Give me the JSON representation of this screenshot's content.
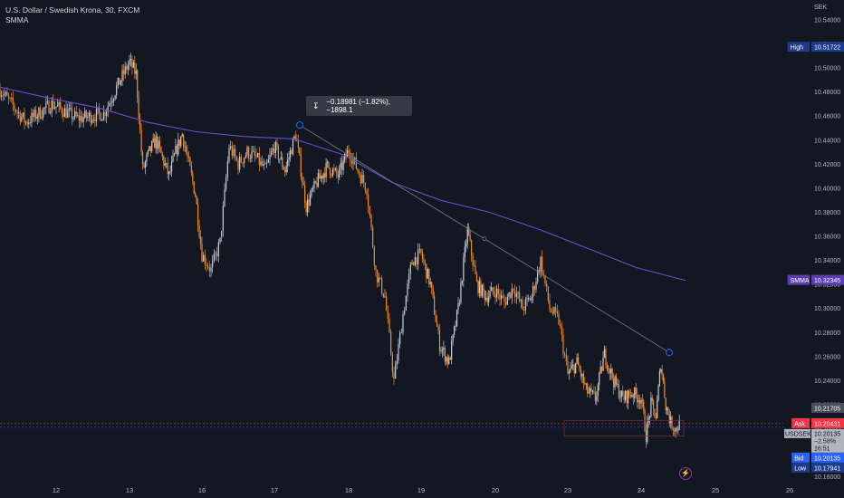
{
  "legend": {
    "symbol_title": "U.S. Dollar / Swedish Krona, 30, FXCM",
    "indicator": "SMMA"
  },
  "measure": {
    "text": "−0.18981 (−1.82%), −1898.1",
    "icon": "ruler-icon"
  },
  "icons": {
    "flash": "lightning-icon"
  },
  "colors": {
    "background": "#131722",
    "candle_up": "#c8cbd4",
    "candle_down": "#f08c28",
    "smma_line": "#6a4ccf",
    "trendline": "#6c6f78",
    "ask": "#f23645",
    "bid": "#2962ff",
    "high_low_tag": "#1e3a8a"
  },
  "price_scale": {
    "currency": "SEK",
    "ticks": [
      "10.54000",
      "10.52000",
      "10.50000",
      "10.48000",
      "10.46000",
      "10.44000",
      "10.42000",
      "10.40000",
      "10.38000",
      "10.36000",
      "10.34000",
      "10.32000",
      "10.30000",
      "10.28000",
      "10.26000",
      "10.24000",
      "10.22000",
      "10.20000",
      "10.18000",
      "10.16000"
    ],
    "tags": {
      "high": {
        "label": "High",
        "value": "10.51722"
      },
      "smma": {
        "label": "SMMA",
        "value": "10.32345"
      },
      "last": {
        "value": "10.21705"
      },
      "ask": {
        "label": "Ask",
        "value": "10.20431"
      },
      "symbol": {
        "label": "USDSEK",
        "value": "10.20135",
        "change": "−2.58%",
        "countdown": "16:51"
      },
      "bid": {
        "label": "Bid",
        "value": "10.20135"
      },
      "low": {
        "label": "Low",
        "value": "10.17941"
      }
    }
  },
  "time_axis": {
    "labels": [
      "12",
      "13",
      "16",
      "17",
      "18",
      "19",
      "20",
      "23",
      "24",
      "25",
      "26"
    ]
  },
  "chart_data": {
    "type": "candlestick",
    "title": "U.S. Dollar / Swedish Krona, 30, FXCM",
    "ylabel": "SEK",
    "ylim": [
      10.15,
      10.555
    ],
    "grid": false,
    "price_path": [
      [
        "12",
        10.482
      ],
      [
        "12",
        10.455
      ],
      [
        "12",
        10.47
      ],
      [
        "12",
        10.458
      ],
      [
        "12",
        10.462
      ],
      [
        "13",
        10.505
      ],
      [
        "13",
        10.495
      ],
      [
        "13",
        10.415
      ],
      [
        "13",
        10.43
      ],
      [
        "13",
        10.44
      ],
      [
        "13",
        10.425
      ],
      [
        "13",
        10.41
      ],
      [
        "13",
        10.43
      ],
      [
        "13",
        10.445
      ],
      [
        "13",
        10.42
      ],
      [
        "13",
        10.395
      ],
      [
        "16",
        10.345
      ],
      [
        "16",
        10.332
      ],
      [
        "16",
        10.355
      ],
      [
        "16",
        10.435
      ],
      [
        "16",
        10.42
      ],
      [
        "16",
        10.43
      ],
      [
        "16",
        10.425
      ],
      [
        "16",
        10.415
      ],
      [
        "17",
        10.435
      ],
      [
        "17",
        10.415
      ],
      [
        "17",
        10.445
      ],
      [
        "17",
        10.385
      ],
      [
        "17",
        10.405
      ],
      [
        "17",
        10.418
      ],
      [
        "17",
        10.41
      ],
      [
        "18",
        10.432
      ],
      [
        "18",
        10.415
      ],
      [
        "18",
        10.4
      ],
      [
        "18",
        10.33
      ],
      [
        "18",
        10.31
      ],
      [
        "18",
        10.24
      ],
      [
        "18",
        10.295
      ],
      [
        "18",
        10.34
      ],
      [
        "19",
        10.345
      ],
      [
        "19",
        10.32
      ],
      [
        "19",
        10.27
      ],
      [
        "19",
        10.255
      ],
      [
        "19",
        10.3
      ],
      [
        "19",
        10.365
      ],
      [
        "19",
        10.32
      ],
      [
        "19",
        10.31
      ],
      [
        "20",
        10.315
      ],
      [
        "20",
        10.305
      ],
      [
        "20",
        10.318
      ],
      [
        "20",
        10.3
      ],
      [
        "20",
        10.31
      ],
      [
        "20",
        10.34
      ],
      [
        "20",
        10.3
      ],
      [
        "20",
        10.29
      ],
      [
        "23",
        10.245
      ],
      [
        "23",
        10.255
      ],
      [
        "23",
        10.232
      ],
      [
        "23",
        10.225
      ],
      [
        "23",
        10.262
      ],
      [
        "23",
        10.24
      ],
      [
        "23",
        10.225
      ],
      [
        "23",
        10.23
      ],
      [
        "24",
        10.225
      ],
      [
        "24",
        10.195
      ],
      [
        "24",
        10.22
      ],
      [
        "24",
        10.21
      ],
      [
        "24",
        10.255
      ],
      [
        "24",
        10.22
      ],
      [
        "24",
        10.205
      ],
      [
        "24",
        10.2
      ],
      [
        "24",
        10.205
      ]
    ],
    "series": [
      {
        "name": "SMMA",
        "value_at_last_bar": 10.32345,
        "points": [
          [
            "12",
            10.484
          ],
          [
            "13",
            10.475
          ],
          [
            "13",
            10.467
          ],
          [
            "16",
            10.455
          ],
          [
            "16",
            10.447
          ],
          [
            "17",
            10.443
          ],
          [
            "17",
            10.441
          ],
          [
            "18",
            10.428
          ],
          [
            "19",
            10.405
          ],
          [
            "20",
            10.39
          ],
          [
            "20",
            10.38
          ],
          [
            "23",
            10.366
          ],
          [
            "23",
            10.35
          ],
          [
            "24",
            10.334
          ],
          [
            "24",
            10.32345
          ]
        ]
      }
    ],
    "drawings": {
      "trendline": {
        "from": [
          "17",
          10.4525
        ],
        "to": [
          "24",
          10.2635
        ]
      }
    },
    "horizontal_lines": {
      "ask": 10.20431,
      "bid": 10.20135
    },
    "high": 10.51722,
    "low": 10.17941
  }
}
